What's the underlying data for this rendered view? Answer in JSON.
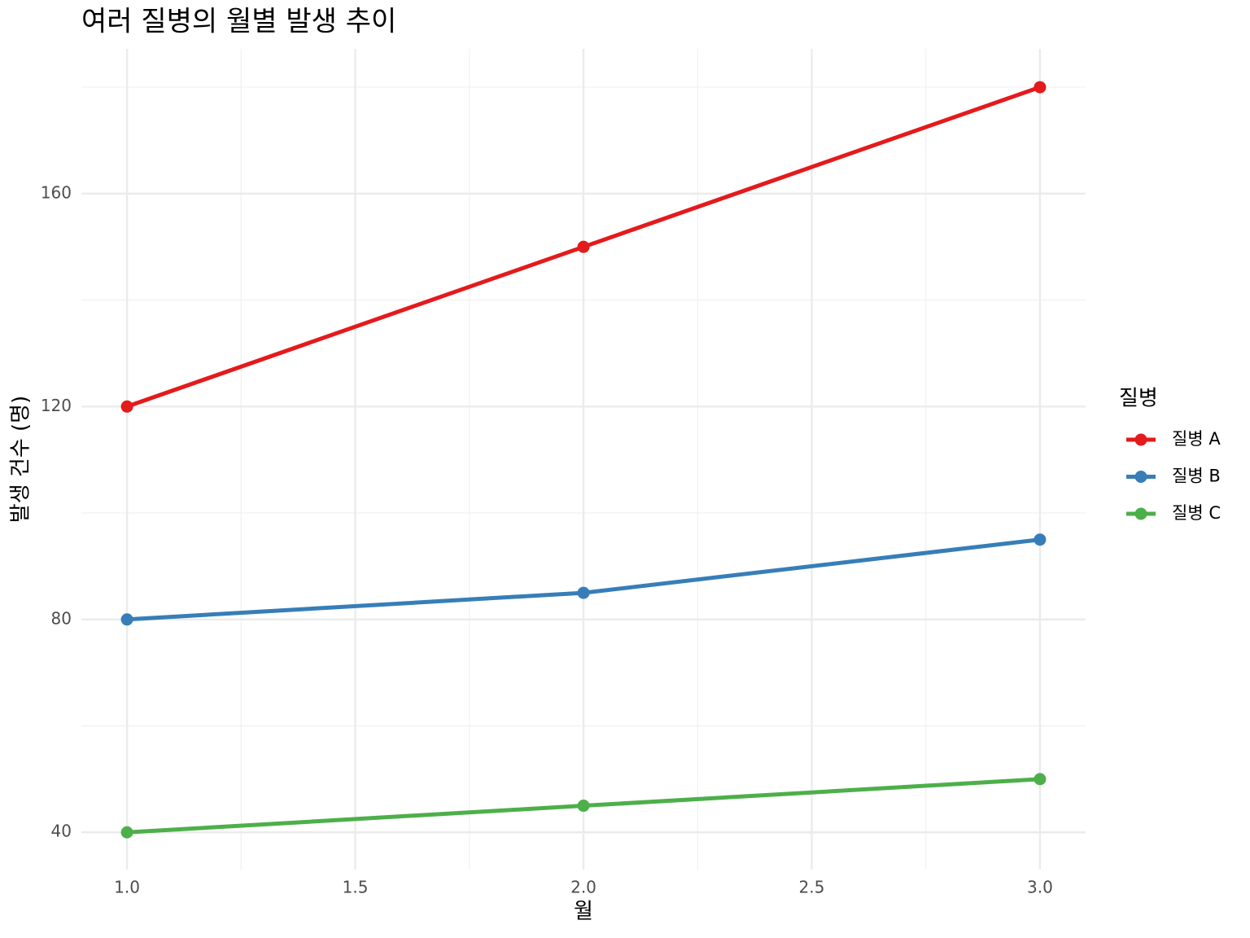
{
  "chart_data": {
    "type": "line",
    "title": "여러 질병의 월별 발생 추이",
    "x_label": "월",
    "y_label": "발생 건수 (명)",
    "legend_title": "질병",
    "x": [
      1,
      2,
      3
    ],
    "series": [
      {
        "name": "질병 A",
        "color": "#e41a1c",
        "values": [
          120,
          150,
          180
        ]
      },
      {
        "name": "질병 B",
        "color": "#377eb8",
        "values": [
          80,
          85,
          95
        ]
      },
      {
        "name": "질병 C",
        "color": "#4daf4a",
        "values": [
          40,
          45,
          50
        ]
      }
    ],
    "xlim": [
      0.9,
      3.1
    ],
    "ylim": [
      33,
      187.2
    ],
    "xticks": [
      {
        "value": 1,
        "label": "1.0"
      },
      {
        "value": 1.5,
        "label": "1.5"
      },
      {
        "value": 2,
        "label": "2.0"
      },
      {
        "value": 2.5,
        "label": "2.5"
      },
      {
        "value": 3,
        "label": "3.0"
      }
    ],
    "yticks": [
      40,
      80,
      120,
      160
    ],
    "x_minor_ticks": [
      1.25,
      1.75,
      2.25,
      2.75
    ],
    "y_minor_ticks": [
      60,
      100,
      140,
      180
    ],
    "grid": true,
    "legend": "right"
  }
}
